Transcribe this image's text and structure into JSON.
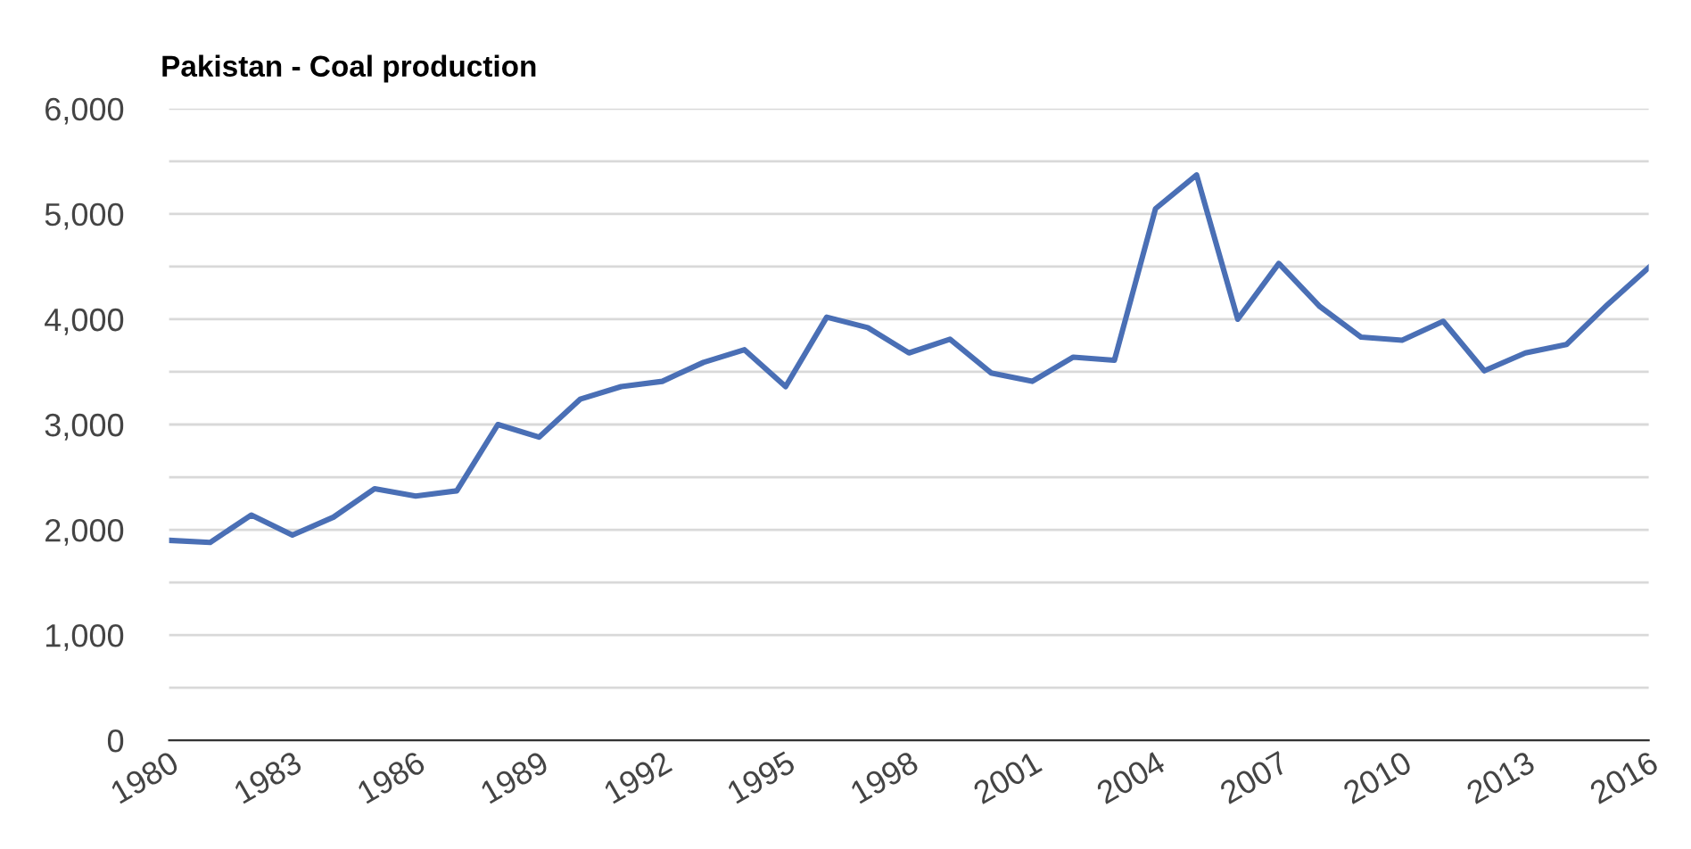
{
  "chart_data": {
    "type": "line",
    "title": "Pakistan - Coal production",
    "x": [
      1980,
      1981,
      1982,
      1983,
      1984,
      1985,
      1986,
      1987,
      1988,
      1989,
      1990,
      1991,
      1992,
      1993,
      1994,
      1995,
      1996,
      1997,
      1998,
      1999,
      2000,
      2001,
      2002,
      2003,
      2004,
      2005,
      2006,
      2007,
      2008,
      2009,
      2010,
      2011,
      2012,
      2013,
      2014,
      2015,
      2016
    ],
    "series": [
      {
        "color": "#4a6fb5",
        "values": [
          1900,
          1880,
          2140,
          1950,
          2120,
          2390,
          2320,
          2370,
          3000,
          2880,
          3240,
          3360,
          3410,
          3590,
          3710,
          3360,
          4020,
          3920,
          3680,
          3810,
          3490,
          3410,
          3640,
          3610,
          5050,
          5370,
          4000,
          4530,
          4120,
          3830,
          3800,
          3980,
          3510,
          3680,
          3760,
          4140,
          4490
        ]
      }
    ],
    "xlim": [
      1980,
      2016
    ],
    "xticks": [
      1980,
      1983,
      1986,
      1989,
      1992,
      1995,
      1998,
      2001,
      2004,
      2007,
      2010,
      2013,
      2016
    ],
    "ylim": [
      0,
      6000
    ],
    "yticks": [
      {
        "value": 0,
        "label": "0"
      },
      {
        "value": 500,
        "label": null
      },
      {
        "value": 1000,
        "label": "1,000"
      },
      {
        "value": 1500,
        "label": null
      },
      {
        "value": 2000,
        "label": "2,000"
      },
      {
        "value": 2500,
        "label": null
      },
      {
        "value": 3000,
        "label": "3,000"
      },
      {
        "value": 3500,
        "label": null
      },
      {
        "value": 4000,
        "label": "4,000"
      },
      {
        "value": 4500,
        "label": null
      },
      {
        "value": 5000,
        "label": "5,000"
      },
      {
        "value": 5500,
        "label": null
      },
      {
        "value": 6000,
        "label": "6,000"
      }
    ],
    "grid": "y",
    "legend": false,
    "marker": "none",
    "line_style": "solid"
  }
}
